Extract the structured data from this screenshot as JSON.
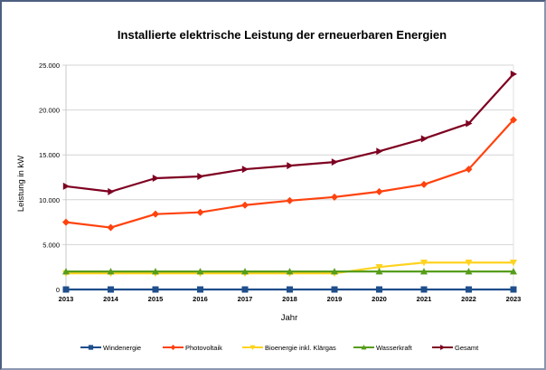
{
  "chart_data": {
    "type": "line",
    "title": "Installierte elektrische Leistung der erneuerbaren Energien",
    "xlabel": "Jahr",
    "ylabel": "Leistung in kW",
    "ylim": [
      0,
      25000
    ],
    "yticks": [
      "0",
      "5.000",
      "10.000",
      "15.000",
      "20.000",
      "25.000"
    ],
    "ytick_values": [
      0,
      5000,
      10000,
      15000,
      20000,
      25000
    ],
    "grid": true,
    "legend": "bottom",
    "categories": [
      "2013",
      "2014",
      "2015",
      "2016",
      "2017",
      "2018",
      "2019",
      "2020",
      "2021",
      "2022",
      "2023"
    ],
    "series": [
      {
        "name": "Windenergie",
        "color": "#1f4e8c",
        "marker": "square",
        "values": [
          0,
          0,
          0,
          0,
          0,
          0,
          0,
          0,
          0,
          0,
          0
        ]
      },
      {
        "name": "Photovoltaik",
        "color": "#ff420e",
        "marker": "diamond",
        "values": [
          7500,
          6900,
          8400,
          8600,
          9400,
          9900,
          10300,
          10900,
          11700,
          13400,
          18900
        ]
      },
      {
        "name": "Bioenergie inkl. Klärgas",
        "color": "#ffd320",
        "marker": "triangle-down",
        "values": [
          1800,
          1800,
          1800,
          1800,
          1800,
          1800,
          1800,
          2500,
          3000,
          3000,
          3000
        ]
      },
      {
        "name": "Wasserkraft",
        "color": "#579d1c",
        "marker": "triangle-up",
        "values": [
          2000,
          2000,
          2000,
          2000,
          2000,
          2000,
          2000,
          2000,
          2000,
          2000,
          2000
        ]
      },
      {
        "name": "Gesamt",
        "color": "#7e0021",
        "marker": "triangle-right",
        "values": [
          11500,
          10900,
          12400,
          12600,
          13400,
          13800,
          14200,
          15400,
          16800,
          18500,
          24000
        ]
      }
    ]
  }
}
